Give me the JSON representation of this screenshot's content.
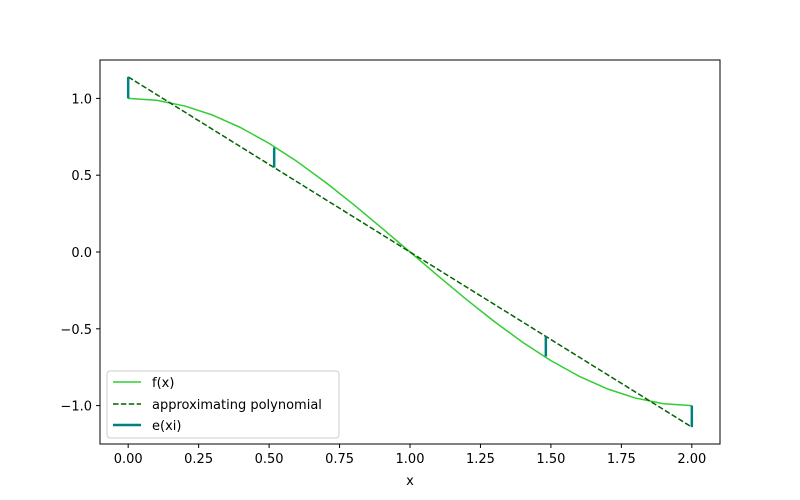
{
  "chart_data": {
    "type": "line",
    "xlabel": "x",
    "ylabel": "",
    "title": "",
    "xlim": [
      -0.1,
      2.1
    ],
    "ylim": [
      -1.25,
      1.25
    ],
    "xticks": [
      0.0,
      0.25,
      0.5,
      0.75,
      1.0,
      1.25,
      1.5,
      1.75,
      2.0
    ],
    "xtick_labels": [
      "0.00",
      "0.25",
      "0.50",
      "0.75",
      "1.00",
      "1.25",
      "1.50",
      "1.75",
      "2.00"
    ],
    "yticks": [
      -1.0,
      -0.5,
      0.0,
      0.5,
      1.0
    ],
    "ytick_labels": [
      "−1.0",
      "−0.5",
      "0.0",
      "0.5",
      "1.0"
    ],
    "grid": false,
    "legend_placement": "lower-left",
    "series": [
      {
        "name": "f(x)",
        "style": "solid",
        "color": "#32cd32",
        "x": [
          0.0,
          0.1,
          0.2,
          0.3,
          0.4,
          0.5,
          0.6,
          0.7,
          0.8,
          0.9,
          1.0,
          1.1,
          1.2,
          1.3,
          1.4,
          1.5,
          1.6,
          1.7,
          1.8,
          1.9,
          2.0
        ],
        "y": [
          1.0,
          0.988,
          0.951,
          0.891,
          0.809,
          0.707,
          0.588,
          0.454,
          0.309,
          0.156,
          0.0,
          -0.156,
          -0.309,
          -0.454,
          -0.588,
          -0.707,
          -0.809,
          -0.891,
          -0.951,
          -0.988,
          -1.0
        ]
      },
      {
        "name": "approximating polynomial",
        "style": "dashed",
        "color": "#006400",
        "x": [
          0.0,
          2.0
        ],
        "y": [
          1.14,
          -1.14
        ]
      }
    ],
    "error_bars": {
      "name": "e(xi)",
      "color": "#008080",
      "segments": [
        {
          "x": 0.0,
          "y_from": 1.0,
          "y_to": 1.14
        },
        {
          "x": 0.518,
          "y_from": 0.68,
          "y_to": 0.55
        },
        {
          "x": 1.482,
          "y_from": -0.68,
          "y_to": -0.55
        },
        {
          "x": 2.0,
          "y_from": -1.0,
          "y_to": -1.14
        }
      ]
    }
  }
}
